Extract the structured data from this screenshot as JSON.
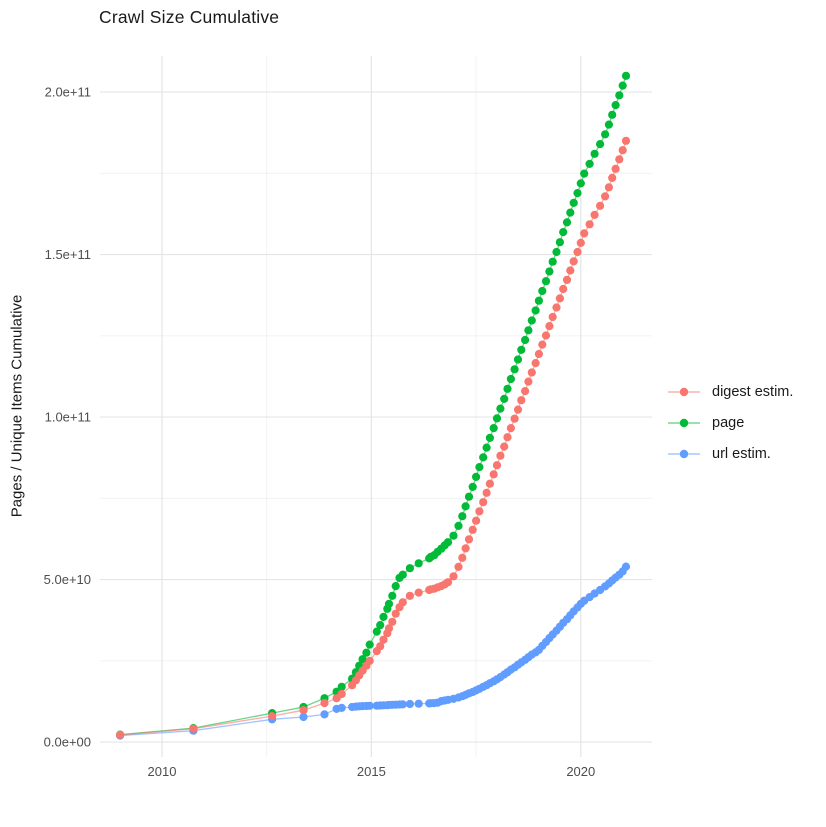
{
  "figure": {
    "background": "#ffffff",
    "grid_major_color": "#e5e5e5",
    "grid_minor_color": "#f0f0f0",
    "tick_label_color": "#4d4d4d",
    "text_color": "#1a1a1a"
  },
  "chart_data": {
    "type": "scatter",
    "title": "Crawl Size Cumulative",
    "xlabel": "",
    "ylabel": "Pages / Unique Items Cumulative",
    "legend_position": "right",
    "grid": true,
    "x_unit": "year (decimal)",
    "y_unit": "billions of items (1e9)",
    "xlim": [
      2008.52,
      2021.7
    ],
    "ylim_e9": [
      -4.6,
      211.1
    ],
    "x_ticks": [
      2010,
      2015,
      2020
    ],
    "x_tick_labels": [
      "2010",
      "2015",
      "2020"
    ],
    "x_minor_ticks": [
      2012.5,
      2017.5,
      2022.5
    ],
    "y_ticks_e9": [
      0,
      50,
      100,
      150,
      200
    ],
    "y_tick_labels": [
      "0.0e+00",
      "5.0e+10",
      "1.0e+11",
      "1.5e+11",
      "2.0e+11"
    ],
    "y_minor_ticks_e9": [
      25,
      75,
      125,
      175
    ],
    "x": [
      2009.0,
      2010.75,
      2012.63,
      2013.38,
      2013.88,
      2014.17,
      2014.29,
      2014.54,
      2014.63,
      2014.71,
      2014.79,
      2014.88,
      2014.96,
      2015.13,
      2015.21,
      2015.29,
      2015.38,
      2015.42,
      2015.5,
      2015.58,
      2015.67,
      2015.75,
      2015.92,
      2016.13,
      2016.38,
      2016.42,
      2016.5,
      2016.58,
      2016.67,
      2016.75,
      2016.83,
      2016.96,
      2017.08,
      2017.17,
      2017.25,
      2017.33,
      2017.42,
      2017.5,
      2017.58,
      2017.67,
      2017.75,
      2017.83,
      2017.92,
      2018.0,
      2018.08,
      2018.17,
      2018.25,
      2018.33,
      2018.42,
      2018.5,
      2018.58,
      2018.67,
      2018.75,
      2018.83,
      2018.92,
      2019.0,
      2019.08,
      2019.17,
      2019.25,
      2019.33,
      2019.42,
      2019.5,
      2019.58,
      2019.67,
      2019.75,
      2019.83,
      2019.92,
      2020.0,
      2020.08,
      2020.21,
      2020.33,
      2020.46,
      2020.58,
      2020.67,
      2020.75,
      2020.83,
      2020.92,
      2021.0,
      2021.08
    ],
    "series": [
      {
        "name": "digest estim.",
        "color": "#F8766D",
        "y_e9": [
          2.2,
          4.1,
          8.0,
          9.8,
          12.0,
          13.5,
          14.8,
          17.5,
          19.0,
          20.5,
          22.0,
          23.5,
          25.0,
          28.0,
          29.5,
          31.5,
          33.5,
          35.0,
          37.0,
          39.5,
          41.5,
          43.0,
          45.0,
          46.0,
          46.8,
          47.0,
          47.2,
          47.6,
          48.0,
          48.5,
          49.2,
          51.0,
          53.9,
          56.7,
          59.6,
          62.4,
          65.3,
          68.1,
          71.0,
          73.8,
          76.7,
          79.5,
          82.4,
          85.2,
          88.1,
          90.9,
          93.8,
          96.6,
          99.5,
          102.3,
          105.2,
          108.0,
          110.9,
          113.7,
          116.6,
          119.4,
          122.3,
          125.1,
          128.0,
          130.8,
          133.7,
          136.5,
          139.4,
          142.2,
          145.1,
          147.9,
          150.8,
          153.6,
          156.5,
          159.3,
          162.2,
          165.0,
          167.9,
          170.7,
          173.6,
          176.4,
          179.3,
          182.1,
          185.0
        ]
      },
      {
        "name": "page",
        "color": "#00BA38",
        "y_e9": [
          2.3,
          4.3,
          8.9,
          10.8,
          13.5,
          15.5,
          17.0,
          19.5,
          21.5,
          23.5,
          25.5,
          27.5,
          30.0,
          34.0,
          36.0,
          38.5,
          41.0,
          42.5,
          45.0,
          48.0,
          50.5,
          51.5,
          53.5,
          55.0,
          56.5,
          57.0,
          57.5,
          58.5,
          59.5,
          60.5,
          61.5,
          63.5,
          66.5,
          69.5,
          72.5,
          75.5,
          78.5,
          81.6,
          84.6,
          87.6,
          90.6,
          93.6,
          96.6,
          99.6,
          102.6,
          105.6,
          108.7,
          111.7,
          114.7,
          117.7,
          120.7,
          123.7,
          126.7,
          129.7,
          132.8,
          135.8,
          138.8,
          141.8,
          144.8,
          147.8,
          150.8,
          153.8,
          156.9,
          159.9,
          162.9,
          165.9,
          168.9,
          171.9,
          174.9,
          177.9,
          181.0,
          184.0,
          187.0,
          190.0,
          193.0,
          196.0,
          199.0,
          202.0,
          205.0
        ]
      },
      {
        "name": "url estim.",
        "color": "#619CFF",
        "y_e9": [
          2.0,
          3.5,
          7.0,
          7.7,
          8.5,
          10.2,
          10.5,
          10.8,
          10.9,
          11.0,
          11.05,
          11.1,
          11.15,
          11.2,
          11.25,
          11.3,
          11.35,
          11.4,
          11.45,
          11.5,
          11.55,
          11.6,
          11.7,
          11.8,
          11.9,
          11.95,
          12.0,
          12.1,
          12.6,
          12.8,
          13.0,
          13.3,
          13.7,
          14.1,
          14.5,
          15.0,
          15.4,
          15.9,
          16.4,
          17.0,
          17.5,
          18.1,
          18.7,
          19.3,
          20.0,
          20.8,
          21.5,
          22.3,
          23.0,
          23.8,
          24.5,
          25.3,
          26.1,
          26.9,
          27.6,
          28.4,
          29.6,
          30.8,
          32.0,
          33.1,
          34.3,
          35.5,
          36.7,
          37.8,
          39.0,
          40.2,
          41.4,
          42.5,
          43.5,
          44.6,
          45.7,
          46.8,
          47.9,
          48.8,
          49.7,
          50.6,
          51.5,
          52.5,
          54.0
        ]
      }
    ]
  }
}
